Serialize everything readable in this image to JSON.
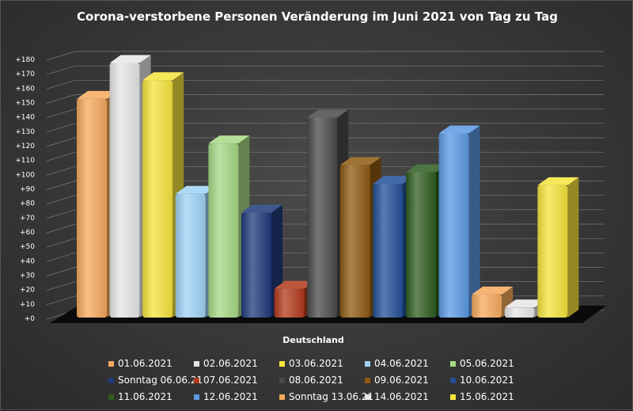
{
  "chart_data": {
    "type": "bar",
    "title": "Corona-verstorbene Personen Veränderung  im Juni 2021 von Tag zu Tag",
    "xlabel": "Deutschland",
    "ylabel": "",
    "ylim": [
      0,
      180
    ],
    "yticks": [
      "+0",
      "+10",
      "+20",
      "+30",
      "+40",
      "+50",
      "+60",
      "+70",
      "+80",
      "+90",
      "+100",
      "+110",
      "+120",
      "+130",
      "+140",
      "+150",
      "+160",
      "+170",
      "+180"
    ],
    "categories": [
      "Deutschland"
    ],
    "series": [
      {
        "name": "01.06.2021",
        "values": [
          152
        ],
        "color": "#f5a95c"
      },
      {
        "name": "02.06.2021",
        "values": [
          177
        ],
        "color": "#e6e6e6"
      },
      {
        "name": "03.06.2021",
        "values": [
          165
        ],
        "color": "#f6e43c"
      },
      {
        "name": "04.06.2021",
        "values": [
          86
        ],
        "color": "#9fd3f5"
      },
      {
        "name": "05.06.2021",
        "values": [
          121
        ],
        "color": "#a6d884"
      },
      {
        "name": "Sonntag 06.06.21",
        "values": [
          73
        ],
        "color": "#1f3a7a"
      },
      {
        "name": "07.06.2021",
        "values": [
          20
        ],
        "color": "#b3391b"
      },
      {
        "name": "08.06.2021",
        "values": [
          139
        ],
        "color": "#4a4a4a"
      },
      {
        "name": "09.06.2021",
        "values": [
          106
        ],
        "color": "#8e5a12"
      },
      {
        "name": "10.06.2021",
        "values": [
          93
        ],
        "color": "#234f97"
      },
      {
        "name": "11.06.2021",
        "values": [
          101
        ],
        "color": "#2f5c1f"
      },
      {
        "name": "12.06.2021",
        "values": [
          128
        ],
        "color": "#5b99e3"
      },
      {
        "name": "Sonntag 13.06.21",
        "values": [
          16
        ],
        "color": "#f5a95c"
      },
      {
        "name": "14.06.2021",
        "values": [
          7
        ],
        "color": "#e6e6e6"
      },
      {
        "name": "15.06.2021",
        "values": [
          92
        ],
        "color": "#f6e43c"
      }
    ],
    "legend_position": "bottom",
    "grid": true
  }
}
